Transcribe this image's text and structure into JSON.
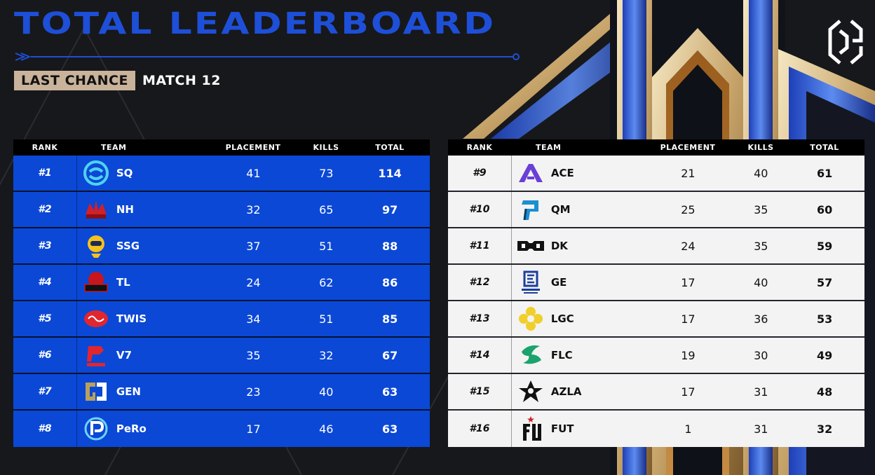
{
  "header": {
    "title": "TOTAL LEADERBOARD",
    "tag": "LAST CHANCE",
    "match": "MATCH 12",
    "brand_logo": "cgc-logo"
  },
  "colors": {
    "accent_blue": "#1e4fd8",
    "row_blue": "#0b48d6",
    "row_light": "#f3f3f3",
    "tag_beige": "#c9b39b",
    "background": "#17181b"
  },
  "columns": {
    "rank": "RANK",
    "team": "TEAM",
    "placement": "PLACEMENT",
    "kills": "KILLS",
    "total": "TOTAL"
  },
  "left_rows": [
    {
      "rank": "#1",
      "team": "SQ",
      "placement": "41",
      "kills": "73",
      "total": "114",
      "logo": "sq-logo"
    },
    {
      "rank": "#2",
      "team": "NH",
      "placement": "32",
      "kills": "65",
      "total": "97",
      "logo": "nh-logo"
    },
    {
      "rank": "#3",
      "team": "SSG",
      "placement": "37",
      "kills": "51",
      "total": "88",
      "logo": "ssg-logo"
    },
    {
      "rank": "#4",
      "team": "TL",
      "placement": "24",
      "kills": "62",
      "total": "86",
      "logo": "tl-logo"
    },
    {
      "rank": "#5",
      "team": "TWIS",
      "placement": "34",
      "kills": "51",
      "total": "85",
      "logo": "twis-logo"
    },
    {
      "rank": "#6",
      "team": "V7",
      "placement": "35",
      "kills": "32",
      "total": "67",
      "logo": "v7-logo"
    },
    {
      "rank": "#7",
      "team": "GEN",
      "placement": "23",
      "kills": "40",
      "total": "63",
      "logo": "gen-logo"
    },
    {
      "rank": "#8",
      "team": "PeRo",
      "placement": "17",
      "kills": "46",
      "total": "63",
      "logo": "pero-logo"
    }
  ],
  "right_rows": [
    {
      "rank": "#9",
      "team": "ACE",
      "placement": "21",
      "kills": "40",
      "total": "61",
      "logo": "ace-logo"
    },
    {
      "rank": "#10",
      "team": "QM",
      "placement": "25",
      "kills": "35",
      "total": "60",
      "logo": "qm-logo"
    },
    {
      "rank": "#11",
      "team": "DK",
      "placement": "24",
      "kills": "35",
      "total": "59",
      "logo": "dk-logo"
    },
    {
      "rank": "#12",
      "team": "GE",
      "placement": "17",
      "kills": "40",
      "total": "57",
      "logo": "ge-logo"
    },
    {
      "rank": "#13",
      "team": "LGC",
      "placement": "17",
      "kills": "36",
      "total": "53",
      "logo": "lgc-logo"
    },
    {
      "rank": "#14",
      "team": "FLC",
      "placement": "19",
      "kills": "30",
      "total": "49",
      "logo": "flc-logo"
    },
    {
      "rank": "#15",
      "team": "AZLA",
      "placement": "17",
      "kills": "31",
      "total": "48",
      "logo": "azla-logo"
    },
    {
      "rank": "#16",
      "team": "FUT",
      "placement": "1",
      "kills": "31",
      "total": "32",
      "logo": "fut-logo"
    }
  ]
}
